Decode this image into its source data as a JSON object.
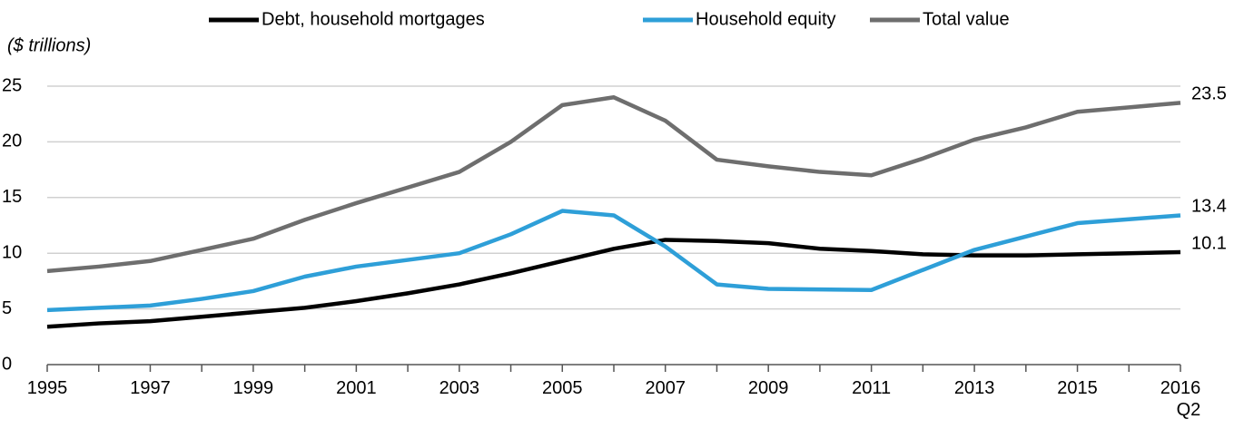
{
  "chart_data": {
    "type": "line",
    "y_label": "($ trillions)",
    "categories": [
      "1995",
      null,
      "1997",
      null,
      "1999",
      null,
      "2001",
      null,
      "2003",
      null,
      "2005",
      null,
      "2007",
      null,
      "2009",
      null,
      "2011",
      null,
      "2013",
      null,
      "2015",
      null,
      "2016 Q2"
    ],
    "series": [
      {
        "name": "Debt, household mortgages",
        "color": "#000000",
        "values": [
          3.4,
          3.7,
          3.9,
          4.3,
          4.7,
          5.1,
          5.7,
          6.4,
          7.2,
          8.2,
          9.3,
          10.4,
          11.2,
          11.1,
          10.9,
          10.4,
          10.2,
          9.9,
          9.8,
          9.8,
          9.9,
          10.0,
          10.1
        ]
      },
      {
        "name": "Household equity",
        "color": "#2e9fd8",
        "values": [
          4.9,
          5.1,
          5.3,
          5.9,
          6.6,
          7.9,
          8.8,
          9.4,
          10.0,
          11.7,
          13.8,
          13.4,
          10.6,
          7.2,
          6.8,
          6.75,
          6.7,
          8.5,
          10.3,
          11.5,
          12.7,
          13.05,
          13.4
        ]
      },
      {
        "name": "Total value",
        "color": "#6e6e6e",
        "values": [
          8.4,
          8.8,
          9.3,
          10.3,
          11.3,
          13.0,
          14.5,
          15.9,
          17.3,
          20.0,
          23.3,
          24.0,
          21.9,
          18.4,
          17.8,
          17.3,
          17.0,
          18.5,
          20.2,
          21.3,
          22.7,
          23.1,
          23.5
        ]
      }
    ],
    "ylim": [
      0,
      25
    ],
    "yticks": [
      0,
      5,
      10,
      15,
      20,
      25
    ],
    "grid": true,
    "legend": "top"
  }
}
